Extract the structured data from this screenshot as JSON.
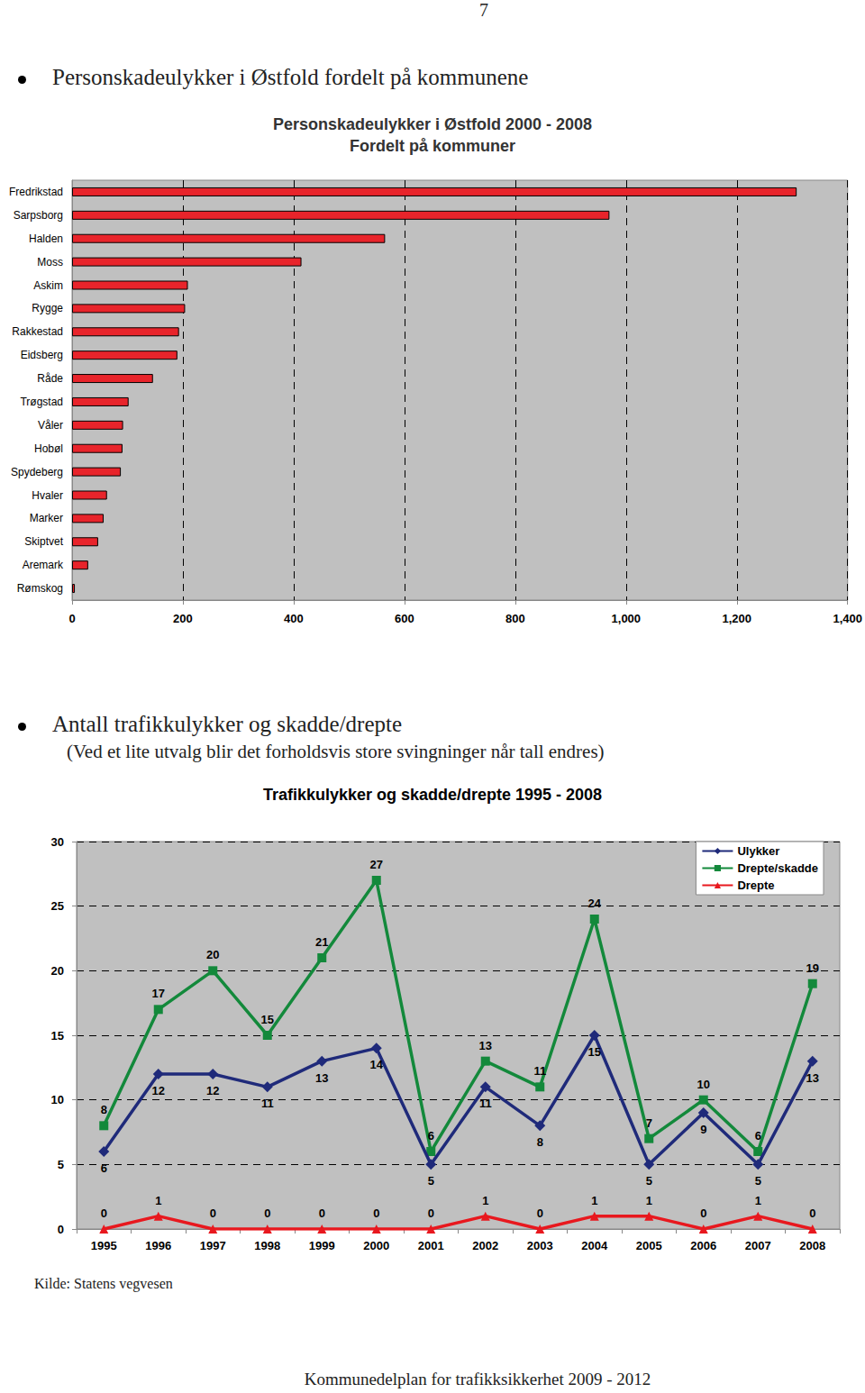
{
  "page": {
    "number": "7",
    "sections": [
      {
        "heading": "Personskadeulykker i Østfold fordelt på kommunene"
      },
      {
        "heading": "Antall trafikkulykker og skadde/drepte",
        "note": "(Ved et lite utvalg blir det forholdsvis store svingninger når tall endres)"
      }
    ],
    "source": "Kilde: Statens vegvesen",
    "footer": "Kommunedelplan for trafikksikkerhet 2009 - 2012"
  },
  "chart_data": [
    {
      "type": "bar",
      "orientation": "horizontal",
      "title": "Personskadeulykker i Østfold 2000 - 2008",
      "subtitle": "Fordelt på kommuner",
      "categories": [
        "Fredrikstad",
        "Sarpsborg",
        "Halden",
        "Moss",
        "Askim",
        "Rygge",
        "Rakkestad",
        "Eidsberg",
        "Råde",
        "Trøgstad",
        "Våler",
        "Hobøl",
        "Spydeberg",
        "Hvaler",
        "Marker",
        "Skiptvet",
        "Aremark",
        "Rømskog"
      ],
      "values": [
        1308,
        970,
        565,
        414,
        209,
        204,
        193,
        190,
        146,
        102,
        92,
        91,
        88,
        63,
        57,
        47,
        29,
        5
      ],
      "color": "#e8242b",
      "xlim": [
        0,
        1400
      ],
      "xticks": [
        0,
        200,
        400,
        600,
        800,
        1000,
        1200,
        1400
      ],
      "grid": true
    },
    {
      "type": "line",
      "title": "Trafikkulykker og skadde/drepte 1995 - 2008",
      "categories": [
        "1995",
        "1996",
        "1997",
        "1998",
        "1999",
        "2000",
        "2001",
        "2002",
        "2003",
        "2004",
        "2005",
        "2006",
        "2007",
        "2008"
      ],
      "series": [
        {
          "name": "Ulykker",
          "color": "#1f2a7a",
          "marker": "diamond",
          "values": [
            6,
            12,
            12,
            11,
            13,
            14,
            5,
            11,
            8,
            15,
            5,
            9,
            5,
            13
          ]
        },
        {
          "name": "Drepte/skadde",
          "color": "#13893b",
          "marker": "square",
          "values": [
            8,
            17,
            20,
            15,
            21,
            27,
            6,
            13,
            11,
            24,
            7,
            10,
            6,
            19
          ]
        },
        {
          "name": "Drepte",
          "color": "#e8181e",
          "marker": "triangle",
          "values": [
            0,
            1,
            0,
            0,
            0,
            0,
            0,
            1,
            0,
            1,
            1,
            0,
            1,
            0
          ]
        }
      ],
      "ylim": [
        0,
        30
      ],
      "yticks": [
        0,
        5,
        10,
        15,
        20,
        25,
        30
      ],
      "grid": true,
      "legend": "top-right",
      "data_labels": true
    }
  ]
}
